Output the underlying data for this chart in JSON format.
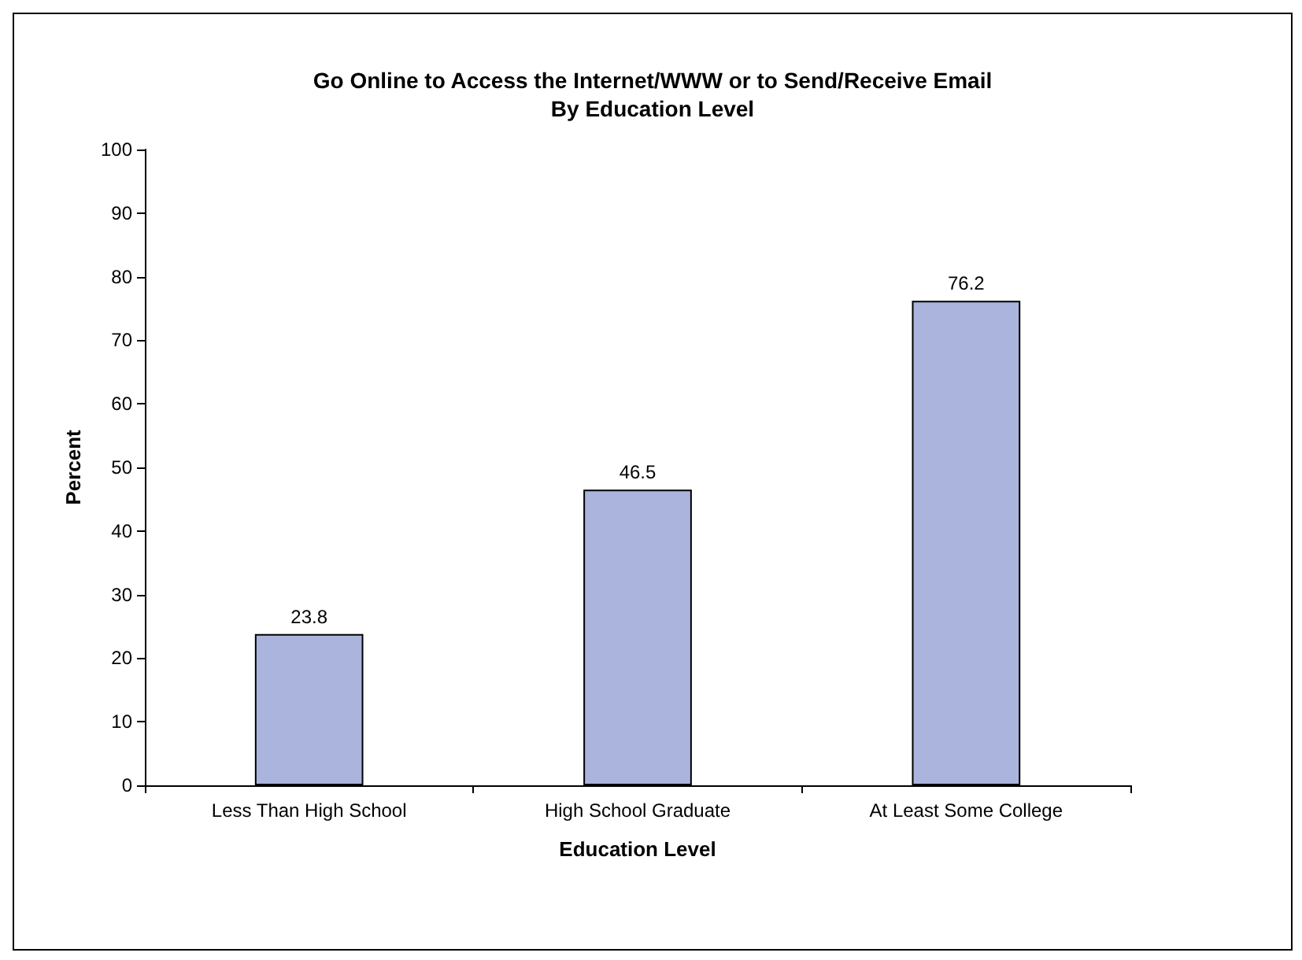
{
  "chart_data": {
    "type": "bar",
    "title": "Go Online to Access the Internet/WWW or to Send/Receive Email\nBy Education Level",
    "xlabel": "Education Level",
    "ylabel": "Percent",
    "categories": [
      "Less Than High School",
      "High School Graduate",
      "At Least Some College"
    ],
    "values": [
      23.8,
      46.5,
      76.2
    ],
    "color": "#aab4dc",
    "ylim": [
      0,
      100
    ],
    "yticks": [
      0,
      10,
      20,
      30,
      40,
      50,
      60,
      70,
      80,
      90,
      100
    ],
    "grid": false,
    "data_labels": true
  }
}
